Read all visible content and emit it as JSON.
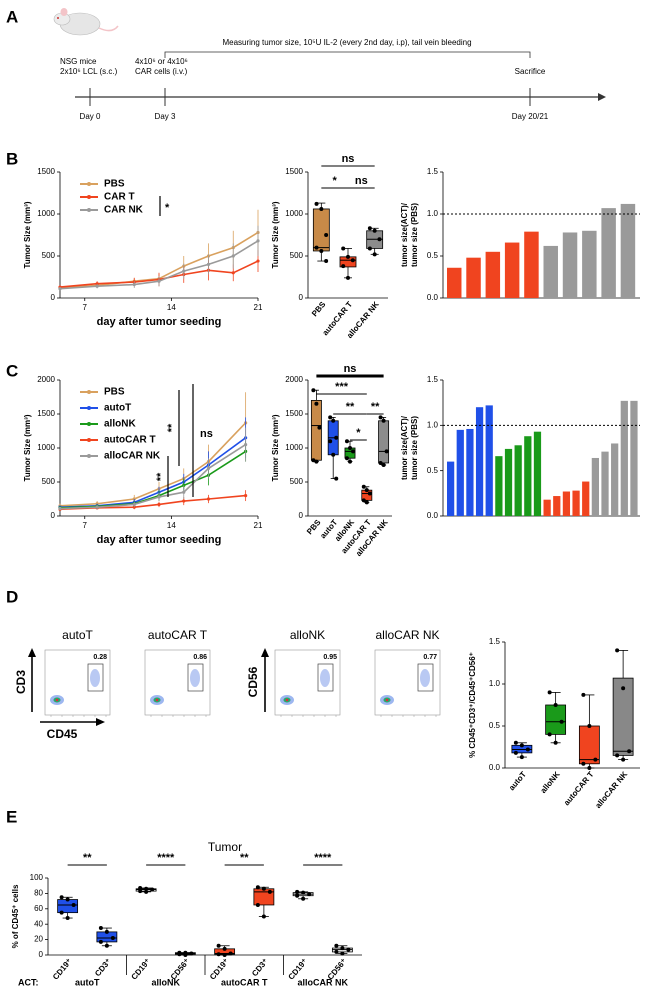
{
  "panel_labels": [
    "A",
    "B",
    "C",
    "D",
    "E"
  ],
  "timeline": {
    "period": "Measuring tumor size, 10⁵U IL-2 (every 2nd day, i.p), tail vein bleeding",
    "events": [
      {
        "day": "Day 0",
        "notes": [
          "NSG mice",
          "2x10⁶ LCL (s.c.)"
        ]
      },
      {
        "day": "Day 3",
        "notes": [
          "4x10⁶ or 4x10⁶",
          "CAR cells (i.v.)"
        ]
      },
      {
        "day": "Day 20/21",
        "notes": [
          "Sacrifice"
        ]
      }
    ]
  },
  "flow_axes": {
    "y_left": "CD3",
    "x": "CD45",
    "y_right": "CD56"
  },
  "flow_plots": [
    {
      "title": "autoT",
      "value": 0.28
    },
    {
      "title": "autoCAR T",
      "value": 0.86
    },
    {
      "title": "alloNK",
      "value": 0.95
    },
    {
      "title": "alloCAR NK",
      "value": 0.77
    }
  ],
  "chart_data": [
    {
      "type": "line",
      "xlabel": "day after tumor seeding",
      "ylabel": "Tumor Size (mm³)",
      "x": [
        5,
        8,
        11,
        13,
        15,
        17,
        19,
        21
      ],
      "xlim": [
        5,
        21
      ],
      "xticks": [
        7,
        14,
        21
      ],
      "ylim": [
        0,
        1500
      ],
      "yticks": [
        0,
        500,
        1000,
        1500
      ],
      "series": [
        {
          "name": "PBS",
          "color": "#d9a15e",
          "values": [
            120,
            150,
            200,
            230,
            380,
            500,
            600,
            780
          ],
          "errors": [
            20,
            30,
            40,
            60,
            120,
            150,
            200,
            270
          ]
        },
        {
          "name": "CAR T",
          "color": "#f0441f",
          "values": [
            130,
            170,
            190,
            220,
            280,
            330,
            300,
            440
          ],
          "errors": [
            20,
            30,
            50,
            80,
            100,
            120,
            100,
            130
          ]
        },
        {
          "name": "CAR NK",
          "color": "#9a9a9a",
          "values": [
            110,
            140,
            160,
            200,
            320,
            400,
            500,
            680
          ],
          "errors": [
            15,
            25,
            40,
            60,
            90,
            120,
            150,
            180
          ]
        }
      ],
      "annotations": [
        "*"
      ]
    },
    {
      "type": "box",
      "ylabel": "Tumor Size (mm³)",
      "categories": [
        "PBS",
        "autoCAR T",
        "alloCAR NK"
      ],
      "ylim": [
        0,
        1500
      ],
      "yticks": [
        0,
        500,
        1000,
        1500
      ],
      "boxes": [
        {
          "min": 440,
          "q1": 560,
          "median": 600,
          "q3": 1060,
          "max": 1130,
          "color": "#c88a48",
          "points": [
            1120,
            1060,
            750,
            600,
            560,
            440
          ]
        },
        {
          "min": 240,
          "q1": 370,
          "median": 450,
          "q3": 490,
          "max": 590,
          "color": "#f0441f",
          "points": [
            590,
            490,
            450,
            380,
            240
          ]
        },
        {
          "min": 520,
          "q1": 590,
          "median": 700,
          "q3": 800,
          "max": 830,
          "color": "#8c8c8c",
          "points": [
            830,
            800,
            700,
            590,
            520
          ]
        }
      ],
      "annotations": [
        "ns",
        "*",
        "ns"
      ]
    },
    {
      "type": "bar",
      "ylabel": [
        "tumor size(ACT)/",
        "tumor size (PBS)"
      ],
      "categories": [
        null,
        null,
        null,
        null,
        null,
        null,
        null,
        null,
        null,
        null
      ],
      "values": [
        0.36,
        0.48,
        0.55,
        0.66,
        0.79,
        0.62,
        0.78,
        0.8,
        1.07,
        1.12
      ],
      "colors": [
        "#f0441f",
        "#f0441f",
        "#f0441f",
        "#f0441f",
        "#f0441f",
        "#9a9a9a",
        "#9a9a9a",
        "#9a9a9a",
        "#9a9a9a",
        "#9a9a9a"
      ],
      "ylim": [
        0,
        1.5
      ],
      "yticks": [
        {
          "value": 0,
          "label": "0.0"
        },
        0.5,
        {
          "value": 1,
          "label": "1.0"
        },
        1.5
      ],
      "reference_line": 1
    },
    {
      "type": "line",
      "xlabel": "day after tumor seeding",
      "ylabel": "Tumor Size (mm³)",
      "x": [
        5,
        8,
        11,
        13,
        15,
        17,
        20
      ],
      "xlim": [
        5,
        21
      ],
      "xticks": [
        7,
        14,
        21
      ],
      "ylim": [
        0,
        2000
      ],
      "yticks": [
        0,
        500,
        1000,
        1500,
        2000
      ],
      "series": [
        {
          "name": "PBS",
          "color": "#d9a15e",
          "values": [
            150,
            180,
            250,
            400,
            550,
            800,
            1370
          ],
          "errors": [
            30,
            40,
            60,
            100,
            150,
            250,
            450
          ]
        },
        {
          "name": "autoT",
          "color": "#2050e8",
          "values": [
            130,
            150,
            200,
            350,
            500,
            750,
            1150
          ],
          "errors": [
            20,
            30,
            50,
            80,
            120,
            200,
            300
          ]
        },
        {
          "name": "alloNK",
          "color": "#1a9a1a",
          "values": [
            120,
            140,
            180,
            300,
            450,
            600,
            950
          ],
          "errors": [
            20,
            30,
            40,
            80,
            100,
            150,
            150
          ]
        },
        {
          "name": "autoCAR T",
          "color": "#f0441f",
          "values": [
            100,
            120,
            130,
            170,
            220,
            250,
            300
          ],
          "errors": [
            15,
            20,
            30,
            40,
            60,
            60,
            80
          ]
        },
        {
          "name": "alloCAR NK",
          "color": "#9a9a9a",
          "values": [
            110,
            130,
            170,
            280,
            350,
            700,
            1050
          ],
          "errors": [
            20,
            30,
            40,
            60,
            100,
            150,
            250
          ]
        }
      ],
      "annotations": [
        "**",
        "**",
        "ns"
      ]
    },
    {
      "type": "box",
      "ylabel": "Tumor Size (mm³)",
      "categories": [
        "PBS",
        "autoT",
        "alloNK",
        "autoCAR T",
        "alloCAR NK"
      ],
      "ylim": [
        0,
        2000
      ],
      "yticks": [
        0,
        500,
        1000,
        1500,
        2000
      ],
      "boxes": [
        {
          "min": 800,
          "q1": 820,
          "median": 1330,
          "q3": 1700,
          "max": 1850,
          "color": "#c88a48",
          "points": [
            1850,
            1650,
            1300,
            820,
            800
          ]
        },
        {
          "min": 550,
          "q1": 900,
          "median": 1150,
          "q3": 1400,
          "max": 1450,
          "color": "#2050e8",
          "points": [
            1450,
            1400,
            1150,
            1100,
            900,
            550
          ]
        },
        {
          "min": 800,
          "q1": 850,
          "median": 950,
          "q3": 1000,
          "max": 1100,
          "color": "#1a9a1a",
          "points": [
            1100,
            1000,
            950,
            850,
            800
          ]
        },
        {
          "min": 200,
          "q1": 230,
          "median": 330,
          "q3": 380,
          "max": 430,
          "color": "#f0441f",
          "points": [
            430,
            380,
            330,
            230,
            200
          ]
        },
        {
          "min": 750,
          "q1": 780,
          "median": 950,
          "q3": 1400,
          "max": 1450,
          "color": "#8c8c8c",
          "points": [
            1450,
            1400,
            950,
            780,
            750
          ]
        }
      ],
      "annotations": [
        "ns",
        "***",
        "**",
        "**",
        "*"
      ]
    },
    {
      "type": "bar",
      "ylabel": [
        "tumor size(ACT)/",
        "tumor size (PBS)"
      ],
      "categories": [
        null,
        null,
        null,
        null,
        null,
        null,
        null,
        null,
        null,
        null,
        null,
        null,
        null,
        null,
        null,
        null,
        null,
        null,
        null,
        null
      ],
      "values": [
        0.6,
        0.95,
        0.96,
        1.2,
        1.22,
        0.66,
        0.74,
        0.78,
        0.88,
        0.93,
        0.18,
        0.22,
        0.27,
        0.28,
        0.38,
        0.64,
        0.71,
        0.8,
        1.27,
        1.27
      ],
      "colors": [
        "#2050e8",
        "#2050e8",
        "#2050e8",
        "#2050e8",
        "#2050e8",
        "#1a9a1a",
        "#1a9a1a",
        "#1a9a1a",
        "#1a9a1a",
        "#1a9a1a",
        "#f0441f",
        "#f0441f",
        "#f0441f",
        "#f0441f",
        "#f0441f",
        "#9a9a9a",
        "#9a9a9a",
        "#9a9a9a",
        "#9a9a9a",
        "#9a9a9a"
      ],
      "ylim": [
        0,
        1.5
      ],
      "yticks": [
        {
          "value": 0,
          "label": "0.0"
        },
        0.5,
        {
          "value": 1,
          "label": "1.0"
        },
        1.5
      ],
      "reference_line": 1
    },
    {
      "type": "box",
      "ylabel": "% CD45⁺CD3⁺/CD45⁺CD56⁺",
      "categories": [
        "autoT",
        "alloNK",
        "autoCAR T",
        "alloCAR NK"
      ],
      "ylim": [
        0,
        1.5
      ],
      "yticks": [
        {
          "value": 0,
          "label": "0.0"
        },
        0.5,
        {
          "value": 1,
          "label": "1.0"
        },
        1.5
      ],
      "boxes": [
        {
          "min": 0.13,
          "q1": 0.18,
          "median": 0.22,
          "q3": 0.27,
          "max": 0.3,
          "color": "#2050e8",
          "points": [
            0.3,
            0.27,
            0.22,
            0.18,
            0.13
          ]
        },
        {
          "min": 0.3,
          "q1": 0.4,
          "median": 0.55,
          "q3": 0.75,
          "max": 0.9,
          "color": "#1a9a1a",
          "points": [
            0.9,
            0.75,
            0.55,
            0.4,
            0.3
          ]
        },
        {
          "min": 0,
          "q1": 0.05,
          "median": 0.1,
          "q3": 0.5,
          "max": 0.87,
          "color": "#f0441f",
          "points": [
            0.87,
            0.5,
            0.1,
            0.05,
            0
          ]
        },
        {
          "min": 0.1,
          "q1": 0.15,
          "median": 0.2,
          "q3": 1.07,
          "max": 1.4,
          "color": "#888888",
          "points": [
            1.4,
            0.95,
            0.2,
            0.15,
            0.1
          ]
        }
      ]
    },
    {
      "type": "box",
      "title": "Tumor",
      "ylabel": "% of CD45⁺ cells",
      "group_label": "ACT:",
      "groups": [
        "autoT",
        "alloNK",
        "autoCAR T",
        "alloCAR NK"
      ],
      "categories": [
        "CD19⁺",
        "CD3⁺",
        "CD19⁺",
        "CD56⁺",
        "CD19⁺",
        "CD3⁺",
        "CD19⁺",
        "CD56⁺"
      ],
      "ylim": [
        0,
        100
      ],
      "yticks": [
        0,
        20,
        40,
        60,
        80,
        100
      ],
      "boxes": [
        {
          "min": 48,
          "q1": 55,
          "median": 65,
          "q3": 72,
          "max": 75,
          "color": "#2050e8",
          "points": [
            75,
            72,
            65,
            55,
            48
          ]
        },
        {
          "min": 12,
          "q1": 17,
          "median": 22,
          "q3": 30,
          "max": 35,
          "color": "#2050e8",
          "points": [
            35,
            30,
            22,
            17,
            12
          ]
        },
        {
          "min": 82,
          "q1": 83,
          "median": 85,
          "q3": 86,
          "max": 87,
          "color": "#ffffff",
          "points": [
            87,
            86,
            85,
            83,
            82
          ]
        },
        {
          "min": 0,
          "q1": 1,
          "median": 2,
          "q3": 3,
          "max": 3,
          "color": "#ffffff",
          "points": [
            3,
            3,
            2,
            1,
            0
          ]
        },
        {
          "min": 0,
          "q1": 1,
          "median": 2,
          "q3": 8,
          "max": 12,
          "color": "#f0441f",
          "points": [
            12,
            8,
            2,
            1,
            0
          ]
        },
        {
          "min": 50,
          "q1": 65,
          "median": 82,
          "q3": 86,
          "max": 88,
          "color": "#f0441f",
          "points": [
            88,
            86,
            82,
            65,
            50
          ]
        },
        {
          "min": 73,
          "q1": 77,
          "median": 79,
          "q3": 81,
          "max": 82,
          "color": "#ffffff",
          "points": [
            82,
            81,
            79,
            77,
            73
          ]
        },
        {
          "min": 2,
          "q1": 4,
          "median": 7,
          "q3": 9,
          "max": 12,
          "color": "#ffffff",
          "points": [
            12,
            9,
            7,
            4,
            2
          ]
        }
      ],
      "annotations": [
        "**",
        "****",
        "**",
        "****"
      ]
    }
  ]
}
